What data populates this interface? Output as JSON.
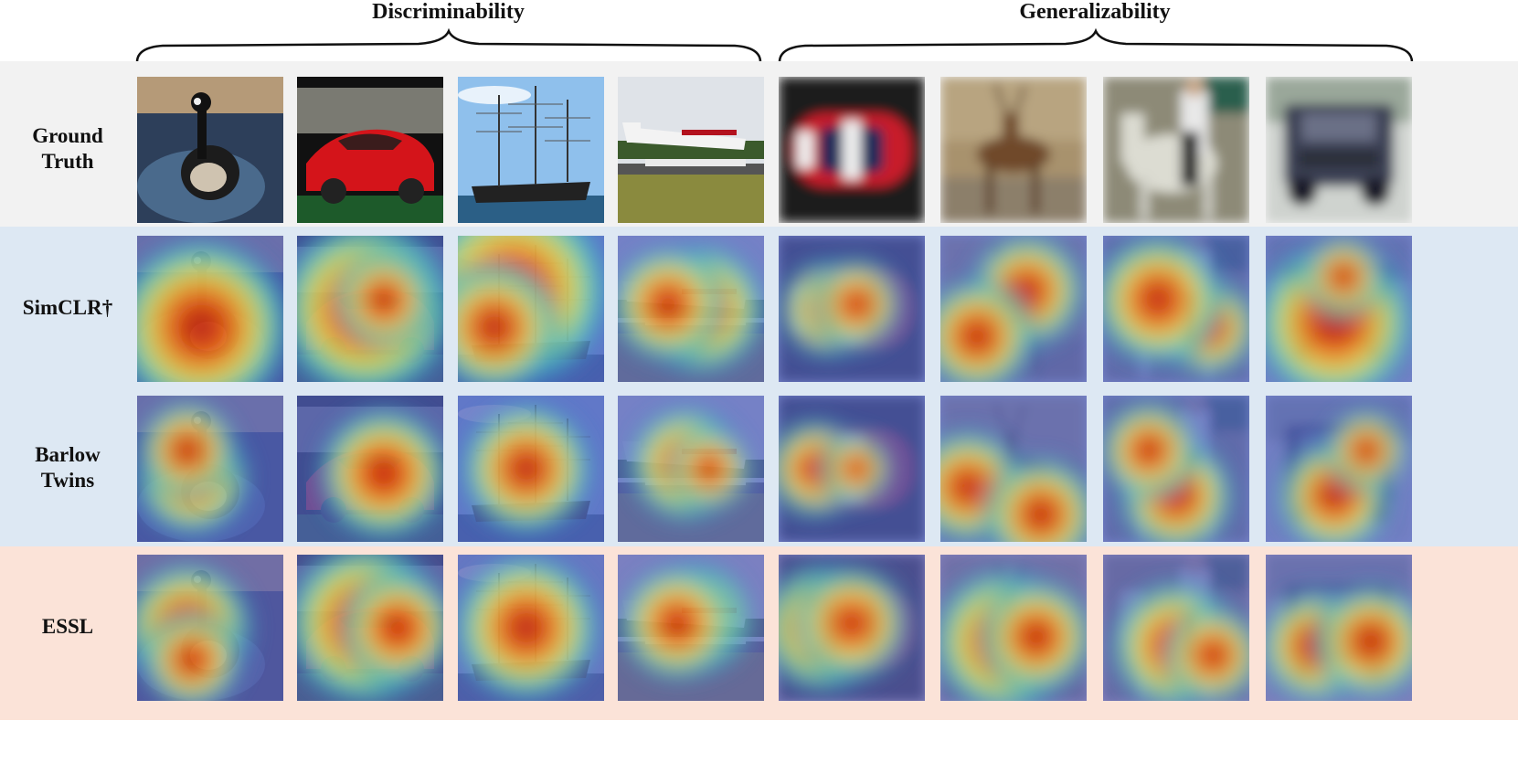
{
  "groups": [
    {
      "title": "Discriminability"
    },
    {
      "title": "Generalizability"
    }
  ],
  "rows": [
    {
      "label_lines": [
        "Ground",
        "Truth"
      ],
      "background": "#f2f2f2"
    },
    {
      "label_lines": [
        "SimCLR†"
      ],
      "background": "#dde8f3"
    },
    {
      "label_lines": [
        "Barlow",
        "Twins"
      ],
      "background": "#dde8f3"
    },
    {
      "label_lines": [
        "ESSL"
      ],
      "background": "#fbe3d8"
    }
  ],
  "columns": [
    {
      "subject": "goose",
      "group": "Discriminability"
    },
    {
      "subject": "red-car",
      "group": "Discriminability"
    },
    {
      "subject": "tall-ship",
      "group": "Discriminability"
    },
    {
      "subject": "seaplane",
      "group": "Discriminability"
    },
    {
      "subject": "red-car-topdown",
      "group": "Generalizability"
    },
    {
      "subject": "deer",
      "group": "Generalizability"
    },
    {
      "subject": "horse-rider",
      "group": "Generalizability"
    },
    {
      "subject": "truck",
      "group": "Generalizability"
    }
  ]
}
